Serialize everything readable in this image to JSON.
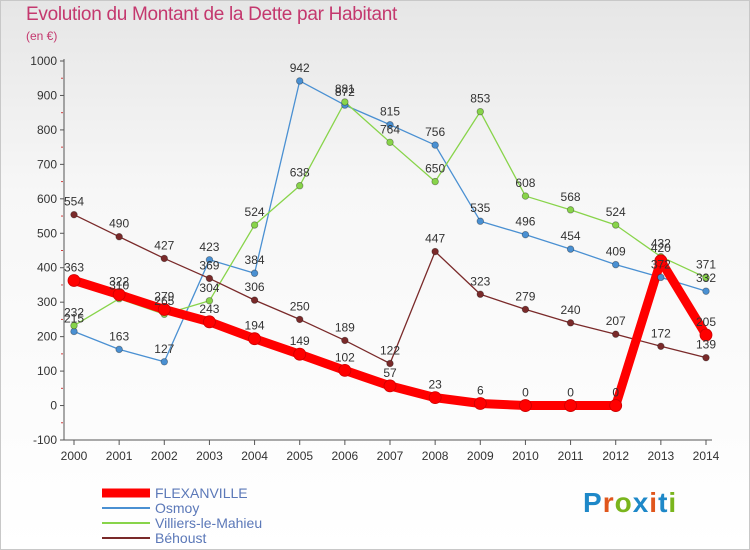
{
  "title": "Evolution du Montant de la Dette par Habitant",
  "subtitle": "(en €)",
  "logo": {
    "text": "Proxiti",
    "colors": [
      "#1e88c8",
      "#e0561c",
      "#7ab51d",
      "#1e88c8",
      "#e0561c",
      "#1e88c8",
      "#7ab51d"
    ]
  },
  "chart_data": {
    "type": "line",
    "x": [
      "2000",
      "2001",
      "2002",
      "2003",
      "2004",
      "2005",
      "2006",
      "2007",
      "2008",
      "2009",
      "2010",
      "2011",
      "2012",
      "2013",
      "2014"
    ],
    "ylim": [
      -100,
      1000
    ],
    "yticks": [
      -100,
      0,
      100,
      200,
      300,
      400,
      500,
      600,
      700,
      800,
      900,
      1000
    ],
    "grid": false,
    "legend": "bottom-left",
    "series": [
      {
        "name": "FLEXANVILLE",
        "color": "#ff0000",
        "values": [
          363,
          322,
          279,
          243,
          194,
          149,
          102,
          57,
          23,
          6,
          0,
          0,
          0,
          420,
          205
        ]
      },
      {
        "name": "Osmoy",
        "color": "#4a90d2",
        "values": [
          215,
          163,
          127,
          423,
          384,
          942,
          872,
          815,
          756,
          535,
          496,
          454,
          409,
          372,
          332
        ]
      },
      {
        "name": "Villiers-le-Mahieu",
        "color": "#88d44a",
        "values": [
          232,
          310,
          265,
          304,
          524,
          638,
          881,
          764,
          650,
          853,
          608,
          568,
          524,
          432,
          371
        ]
      },
      {
        "name": "Béhoust",
        "color": "#7a2a2a",
        "values": [
          554,
          490,
          427,
          369,
          306,
          250,
          189,
          122,
          447,
          323,
          279,
          240,
          207,
          172,
          139
        ]
      }
    ]
  }
}
